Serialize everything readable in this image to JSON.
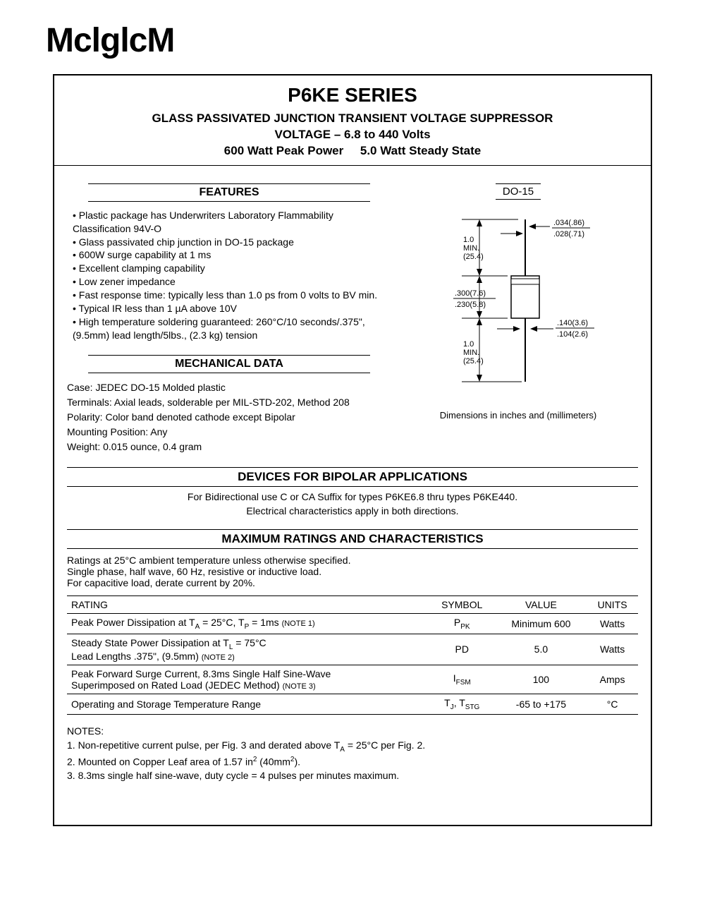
{
  "logo": "MclglcM",
  "title": {
    "main": "P6KE SERIES",
    "sub1": "GLASS PASSIVATED JUNCTION TRANSIENT VOLTAGE SUPPRESSOR",
    "sub2": "VOLTAGE – 6.8 to 440 Volts",
    "sub3a": "600 Watt Peak Power",
    "sub3b": "5.0 Watt Steady State"
  },
  "features_header": "FEATURES",
  "features": [
    "Plastic package has Underwriters Laboratory Flammability Classification 94V-O",
    "Glass passivated chip junction in DO-15 package",
    "600W surge capability at 1 ms",
    "Excellent clamping capability",
    "Low zener impedance",
    "Fast response time: typically less than 1.0 ps from 0 volts to BV min.",
    "Typical IR less than 1 µA above 10V",
    "High temperature soldering guaranteed: 260°C/10 seconds/.375\", (9.5mm) lead length/5lbs., (2.3 kg) tension"
  ],
  "mech_header": "MECHANICAL DATA",
  "mech": {
    "case": "Case: JEDEC DO-15 Molded plastic",
    "terminals": "Terminals: Axial leads, solderable per MIL-STD-202, Method 208",
    "polarity": "Polarity: Color band denoted cathode except Bipolar",
    "mounting": "Mounting Position: Any",
    "weight": "Weight: 0.015 ounce, 0.4 gram"
  },
  "package": {
    "label": "DO-15",
    "caption": "Dimensions in inches and (millimeters)",
    "dims": {
      "lead_len_top": "1.0\nMIN.\n(25.4)",
      "body_len": ".300(7.6)\n.230(5.8)",
      "lead_len_bot": "1.0\nMIN.\n(25.4)",
      "lead_dia": ".034(.86)\n.028(.71)",
      "body_dia": ".140(3.6)\n.104(2.6)"
    }
  },
  "bipolar_header": "DEVICES FOR BIPOLAR APPLICATIONS",
  "bipolar_text1": "For Bidirectional use C or CA Suffix for types P6KE6.8 thru types P6KE440.",
  "bipolar_text2": "Electrical characteristics apply in both directions.",
  "ratings_header": "MAXIMUM RATINGS AND CHARACTERISTICS",
  "ratings_note": "Ratings at 25°C ambient temperature unless otherwise specified.\nSingle phase, half wave, 60 Hz, resistive or inductive load.\nFor capacitive load, derate current by 20%.",
  "table": {
    "headers": [
      "RATING",
      "SYMBOL",
      "VALUE",
      "UNITS"
    ],
    "rows": [
      {
        "rating": "Peak Power Dissipation at T_A = 25°C, T_P = 1ms",
        "note": "(NOTE 1)",
        "symbol": "P_PK",
        "value": "Minimum 600",
        "units": "Watts"
      },
      {
        "rating": "Steady State Power Dissipation at T_L = 75°C\nLead Lengths .375\", (9.5mm)",
        "note": "(NOTE 2)",
        "symbol": "PD",
        "value": "5.0",
        "units": "Watts"
      },
      {
        "rating": "Peak Forward Surge Current, 8.3ms Single Half Sine-Wave\nSuperimposed on Rated Load (JEDEC Method)",
        "note": "(NOTE 3)",
        "symbol": "I_FSM",
        "value": "100",
        "units": "Amps"
      },
      {
        "rating": "Operating and Storage Temperature Range",
        "note": "",
        "symbol": "T_J, T_STG",
        "value": "-65 to +175",
        "units": "°C"
      }
    ]
  },
  "notes_header": "NOTES:",
  "notes": [
    "1. Non-repetitive current pulse, per Fig. 3 and derated above T_A = 25°C per Fig. 2.",
    "2. Mounted on Copper Leaf area of 1.57 in² (40mm²).",
    "3. 8.3ms single half sine-wave, duty cycle = 4 pulses per minutes maximum."
  ]
}
